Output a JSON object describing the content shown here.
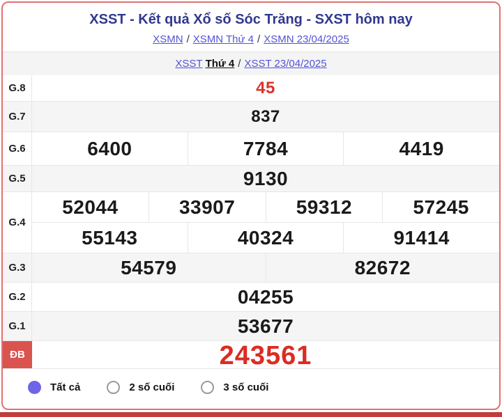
{
  "header": {
    "title": "XSST - Kết quả Xổ số Sóc Trăng - SXST hôm nay",
    "breadcrumb": {
      "separator": "/",
      "links": [
        "XSMN",
        "XSMN Thứ 4",
        "XSMN 23/04/2025"
      ]
    },
    "sub_breadcrumb": {
      "separator": "/",
      "station_link": "XSST",
      "bold_text": "Thứ 4",
      "date_link": "XSST 23/04/2025"
    }
  },
  "results_table": {
    "rows": [
      {
        "label": "G.8",
        "lines": [
          [
            "45"
          ]
        ],
        "style": "small-red"
      },
      {
        "label": "G.7",
        "lines": [
          [
            "837"
          ]
        ],
        "style": "small"
      },
      {
        "label": "G.6",
        "lines": [
          [
            "6400",
            "7784",
            "4419"
          ]
        ],
        "style": "normal"
      },
      {
        "label": "G.5",
        "lines": [
          [
            "9130"
          ]
        ],
        "style": "normal"
      },
      {
        "label": "G.4",
        "lines": [
          [
            "52044",
            "33907",
            "59312",
            "57245"
          ],
          [
            "55143",
            "40324",
            "91414"
          ]
        ],
        "style": "normal"
      },
      {
        "label": "G.3",
        "lines": [
          [
            "54579",
            "82672"
          ]
        ],
        "style": "normal"
      },
      {
        "label": "G.2",
        "lines": [
          [
            "04255"
          ]
        ],
        "style": "normal"
      },
      {
        "label": "G.1",
        "lines": [
          [
            "53677"
          ]
        ],
        "style": "normal"
      },
      {
        "label": "ĐB",
        "lines": [
          [
            "243561"
          ]
        ],
        "style": "special"
      }
    ]
  },
  "filters": {
    "options": [
      {
        "label": "Tất cả",
        "selected": true
      },
      {
        "label": "2 số cuối",
        "selected": false
      },
      {
        "label": "3 số cuối",
        "selected": false
      }
    ]
  },
  "colors": {
    "container_border": "#e07270",
    "title_text": "#31388f",
    "link_text": "#5353d8",
    "highlight_number": "#d9342c",
    "special_number": "#dd2b23",
    "special_label_bg": "#d9534f",
    "alt_row_bg": "#f5f5f5",
    "radio_selected": "#6e64e7",
    "bottom_bar": "#c13c3a"
  }
}
